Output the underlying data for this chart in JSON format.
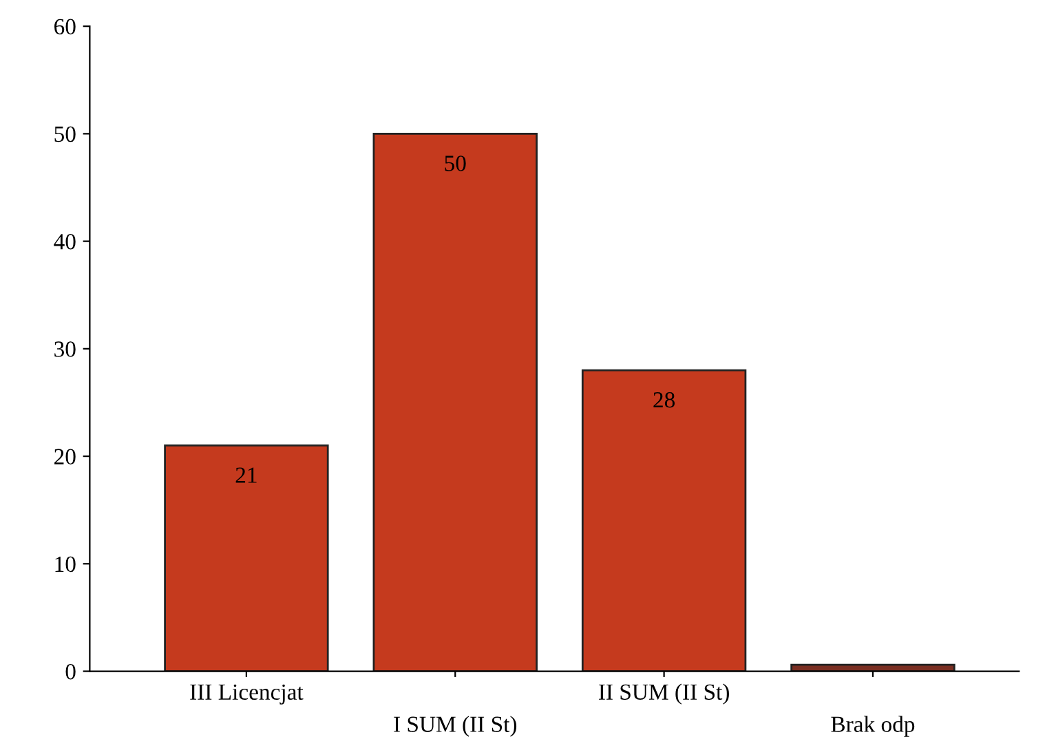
{
  "chart_data": {
    "type": "bar",
    "categories": [
      "III Licencjat",
      "I SUM (II St)",
      "II SUM (II St)",
      "Brak odp"
    ],
    "values": [
      21,
      50,
      28,
      0.6
    ],
    "colors": [
      "#c53a1e",
      "#c53a1e",
      "#c53a1e",
      "#7a2e22"
    ],
    "value_labels": [
      "21",
      "50",
      "28",
      null
    ],
    "ylim": [
      0,
      60
    ],
    "yticks": [
      0,
      10,
      20,
      30,
      40,
      50,
      60
    ],
    "grid": false
  }
}
